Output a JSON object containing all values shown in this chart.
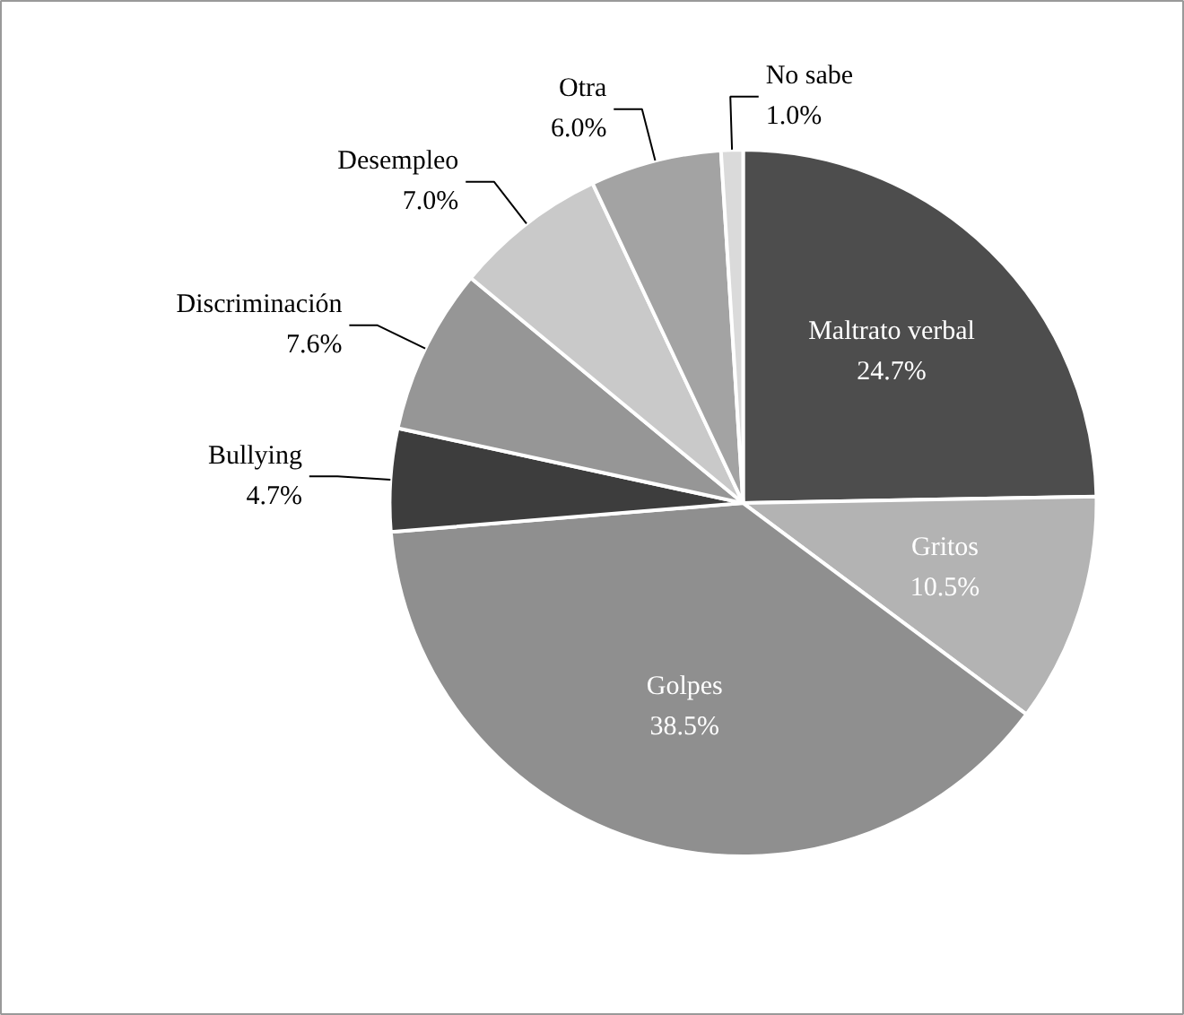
{
  "chart_data": {
    "type": "pie",
    "categories": [
      "Maltrato verbal",
      "Gritos",
      "Golpes",
      "Bullying",
      "Discriminación",
      "Desempleo",
      "Otra",
      "No sabe"
    ],
    "values": [
      24.7,
      10.5,
      38.5,
      4.7,
      7.6,
      7.0,
      6.0,
      1.0
    ],
    "colors": [
      "#4d4d4d",
      "#b3b3b3",
      "#8f8f8f",
      "#3d3d3d",
      "#969696",
      "#c9c9c9",
      "#a3a3a3",
      "#dadada"
    ],
    "value_labels": [
      "24.7%",
      "10.5%",
      "38.5%",
      "4.7%",
      "7.6%",
      "7.0%",
      "6.0%",
      "1.0%"
    ],
    "legend": false
  }
}
